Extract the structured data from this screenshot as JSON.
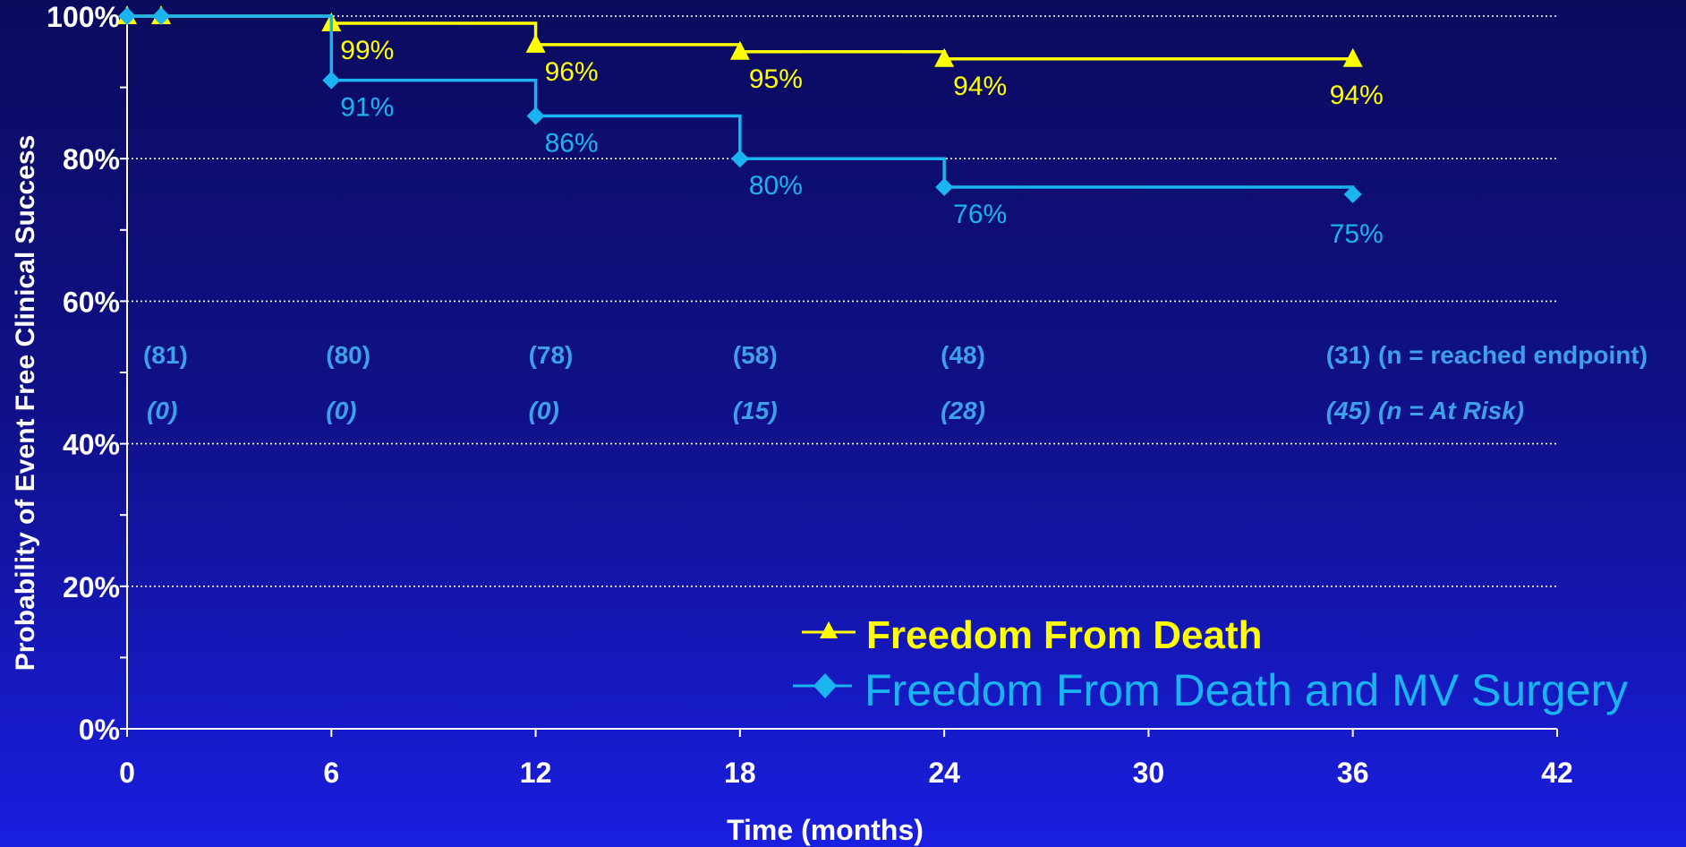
{
  "colors": {
    "death": "#ffff00",
    "death_mv": "#1ab4f0",
    "axis": "#ffffff",
    "risk_text": "#3da0e8"
  },
  "chart_data": {
    "type": "line",
    "step": true,
    "xlabel": "Time (months)",
    "ylabel": "Probability of Event Free Clinical Success",
    "xlim": [
      0,
      42
    ],
    "ylim": [
      0,
      100
    ],
    "x_ticks": [
      "0",
      "6",
      "12",
      "18",
      "24",
      "30",
      "36",
      "42"
    ],
    "y_ticks": [
      "0%",
      "20%",
      "40%",
      "60%",
      "80%",
      "100%"
    ],
    "grid": "horizontal dotted",
    "legend_position": "bottom-right",
    "series": [
      {
        "name": "Freedom From Death",
        "marker": "triangle",
        "color": "#ffff00",
        "points": [
          {
            "x": 0,
            "y": 100,
            "label": ""
          },
          {
            "x": 1,
            "y": 100,
            "label": ""
          },
          {
            "x": 6,
            "y": 99,
            "label": "99%"
          },
          {
            "x": 12,
            "y": 96,
            "label": "96%"
          },
          {
            "x": 18,
            "y": 95,
            "label": "95%"
          },
          {
            "x": 24,
            "y": 94,
            "label": "94%"
          },
          {
            "x": 36,
            "y": 94,
            "label": "94%"
          }
        ]
      },
      {
        "name": "Freedom From Death and MV Surgery",
        "marker": "diamond",
        "color": "#1ab4f0",
        "points": [
          {
            "x": 0,
            "y": 100,
            "label": ""
          },
          {
            "x": 1,
            "y": 100,
            "label": ""
          },
          {
            "x": 6,
            "y": 91,
            "label": "91%"
          },
          {
            "x": 12,
            "y": 86,
            "label": "86%"
          },
          {
            "x": 18,
            "y": 80,
            "label": "80%"
          },
          {
            "x": 24,
            "y": 76,
            "label": "76%"
          },
          {
            "x": 36,
            "y": 75,
            "label": "75%"
          }
        ]
      }
    ],
    "reached_endpoint": {
      "label": "(n = reached endpoint)",
      "values": [
        {
          "x": 1,
          "text": "(81)"
        },
        {
          "x": 6,
          "text": "(80)"
        },
        {
          "x": 12,
          "text": "(78)"
        },
        {
          "x": 18,
          "text": "(58)"
        },
        {
          "x": 24,
          "text": "(48)"
        },
        {
          "x": 36,
          "text": "(31)"
        }
      ]
    },
    "at_risk": {
      "label": "(n = At Risk)",
      "values": [
        {
          "x": 1,
          "text": "(0)"
        },
        {
          "x": 6,
          "text": "(0)"
        },
        {
          "x": 12,
          "text": "(0)"
        },
        {
          "x": 18,
          "text": "(15)"
        },
        {
          "x": 24,
          "text": "(28)"
        },
        {
          "x": 36,
          "text": "(45)"
        }
      ]
    }
  }
}
